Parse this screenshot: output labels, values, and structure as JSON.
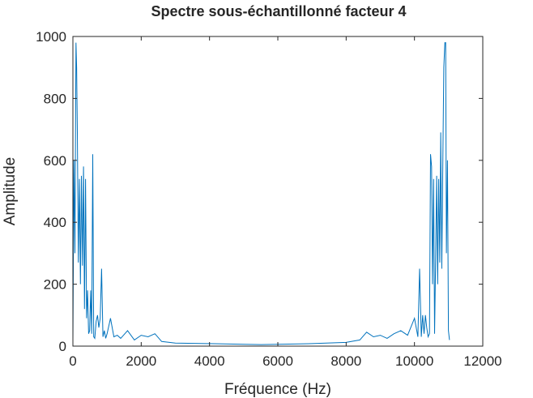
{
  "chart_data": {
    "type": "line",
    "title": "Spectre sous-échantillonné facteur 4",
    "xlabel": "Fréquence (Hz)",
    "ylabel": "Amplitude",
    "xlim": [
      0,
      12000
    ],
    "ylim": [
      0,
      1000
    ],
    "xticks": [
      0,
      2000,
      4000,
      6000,
      8000,
      10000,
      12000
    ],
    "yticks": [
      0,
      200,
      400,
      600,
      800,
      1000
    ],
    "xtick_labels": [
      "0",
      "2000",
      "4000",
      "6000",
      "8000",
      "10000",
      "12000"
    ],
    "ytick_labels": [
      "0",
      "200",
      "400",
      "600",
      "800",
      "1000"
    ],
    "grid": false,
    "line_color": "#0072bd",
    "series": [
      {
        "x": [
          0,
          30,
          60,
          90,
          110,
          130,
          160,
          190,
          220,
          250,
          280,
          310,
          340,
          370,
          400,
          430,
          460,
          490,
          520,
          550,
          580,
          610,
          640,
          680,
          720,
          760,
          800,
          840,
          880,
          920,
          960,
          1000,
          1100,
          1200,
          1300,
          1400,
          1600,
          1800,
          2000,
          2200,
          2400,
          2600,
          3000,
          4000,
          5000,
          5512,
          6000,
          7000,
          8000,
          8400,
          8600,
          8800,
          9000,
          9200,
          9400,
          9600,
          9800,
          10000,
          10100,
          10150,
          10200,
          10240,
          10280,
          10320,
          10360,
          10400,
          10440,
          10470,
          10500,
          10530,
          10560,
          10590,
          10620,
          10650,
          10680,
          10710,
          10740,
          10770,
          10800,
          10830,
          10860,
          10890,
          10915,
          10935,
          10965,
          10995,
          11025
        ],
        "y": [
          20,
          600,
          300,
          980,
          900,
          690,
          270,
          540,
          200,
          550,
          260,
          580,
          120,
          540,
          90,
          180,
          40,
          50,
          180,
          40,
          620,
          30,
          25,
          80,
          100,
          60,
          90,
          250,
          30,
          50,
          25,
          40,
          90,
          30,
          35,
          25,
          50,
          20,
          35,
          30,
          40,
          15,
          10,
          8,
          6,
          5,
          6,
          8,
          12,
          20,
          45,
          30,
          35,
          25,
          40,
          50,
          35,
          90,
          30,
          250,
          30,
          100,
          40,
          100,
          60,
          30,
          40,
          620,
          580,
          200,
          540,
          40,
          280,
          550,
          200,
          540,
          270,
          690,
          250,
          600,
          900,
          980,
          980,
          300,
          600,
          50,
          20
        ]
      }
    ]
  }
}
